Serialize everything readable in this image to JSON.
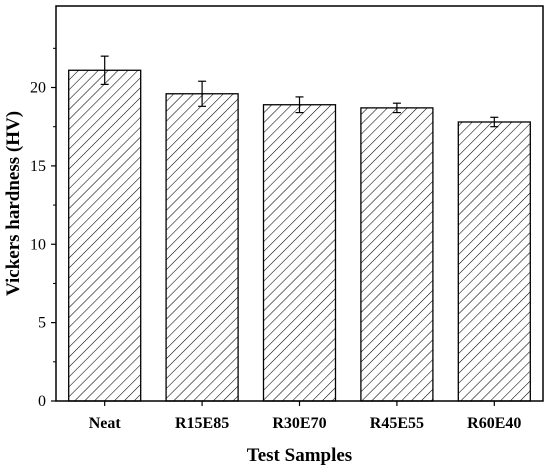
{
  "chart_data": {
    "type": "bar",
    "title": "",
    "xlabel": "Test Samples",
    "ylabel": "Vickers hardness (HV)",
    "categories": [
      "Neat",
      "R15E85",
      "R30E70",
      "R45E55",
      "R60E40"
    ],
    "values": [
      21.1,
      19.6,
      18.9,
      18.7,
      17.8
    ],
    "error": [
      0.9,
      0.8,
      0.5,
      0.3,
      0.3
    ],
    "ylim": [
      0,
      25.2
    ],
    "yticks": [
      0,
      5,
      10,
      15,
      20
    ],
    "grid": false,
    "legend": "none",
    "bar_style": "diagonal-hatch",
    "bar_color": "#ffffff",
    "stroke_color": "#000000"
  }
}
